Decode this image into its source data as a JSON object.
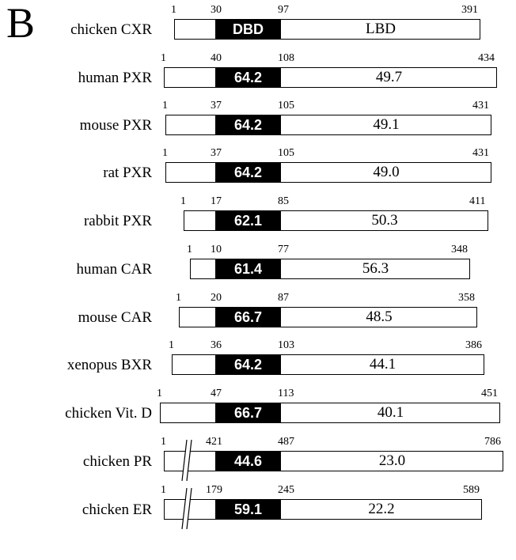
{
  "panel_label": "B",
  "rows": [
    {
      "name": "chicken CXR",
      "start": "1",
      "dbd_start": "30",
      "dbd_end": "97",
      "end": "391",
      "dbd_label": "DBD",
      "lbd_label": "LBD",
      "break": false
    },
    {
      "name": "human PXR",
      "start": "1",
      "dbd_start": "40",
      "dbd_end": "108",
      "end": "434",
      "dbd_label": "64.2",
      "lbd_label": "49.7",
      "break": false
    },
    {
      "name": "mouse PXR",
      "start": "1",
      "dbd_start": "37",
      "dbd_end": "105",
      "end": "431",
      "dbd_label": "64.2",
      "lbd_label": "49.1",
      "break": false
    },
    {
      "name": "rat PXR",
      "start": "1",
      "dbd_start": "37",
      "dbd_end": "105",
      "end": "431",
      "dbd_label": "64.2",
      "lbd_label": "49.0",
      "break": false
    },
    {
      "name": "rabbit PXR",
      "start": "1",
      "dbd_start": "17",
      "dbd_end": "85",
      "end": "411",
      "dbd_label": "62.1",
      "lbd_label": "50.3",
      "break": false
    },
    {
      "name": "human CAR",
      "start": "1",
      "dbd_start": "10",
      "dbd_end": "77",
      "end": "348",
      "dbd_label": "61.4",
      "lbd_label": "56.3",
      "break": false
    },
    {
      "name": "mouse CAR",
      "start": "1",
      "dbd_start": "20",
      "dbd_end": "87",
      "end": "358",
      "dbd_label": "66.7",
      "lbd_label": "48.5",
      "break": false
    },
    {
      "name": "xenopus BXR",
      "start": "1",
      "dbd_start": "36",
      "dbd_end": "103",
      "end": "386",
      "dbd_label": "64.2",
      "lbd_label": "44.1",
      "break": false
    },
    {
      "name": "chicken Vit. D",
      "start": "1",
      "dbd_start": "47",
      "dbd_end": "113",
      "end": "451",
      "dbd_label": "66.7",
      "lbd_label": "40.1",
      "break": false
    },
    {
      "name": "chicken PR",
      "start": "1",
      "dbd_start": "421",
      "dbd_end": "487",
      "end": "786",
      "dbd_label": "44.6",
      "lbd_label": "23.0",
      "break": true
    },
    {
      "name": "chicken ER",
      "start": "1",
      "dbd_start": "179",
      "dbd_end": "245",
      "end": "589",
      "dbd_label": "59.1",
      "lbd_label": "22.2",
      "break": true
    }
  ]
}
